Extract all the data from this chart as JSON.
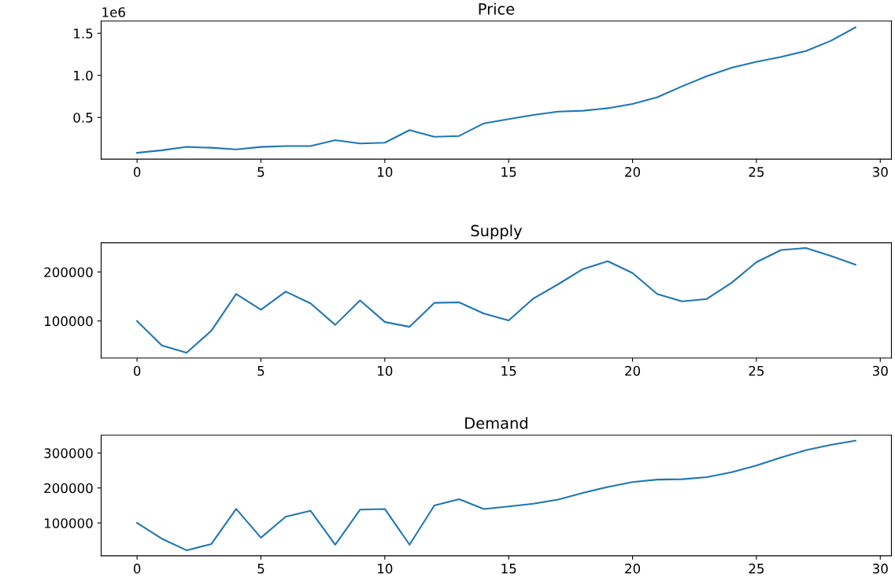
{
  "chart_data": [
    {
      "type": "line",
      "title": "Price",
      "x": [
        0,
        1,
        2,
        3,
        4,
        5,
        6,
        7,
        8,
        9,
        10,
        11,
        12,
        13,
        14,
        15,
        16,
        17,
        18,
        19,
        20,
        21,
        22,
        23,
        24,
        25,
        26,
        27,
        28,
        29
      ],
      "series": [
        {
          "color": "#1f77b4",
          "values": [
            0.08,
            0.11,
            0.15,
            0.14,
            0.12,
            0.15,
            0.16,
            0.16,
            0.23,
            0.19,
            0.2,
            0.35,
            0.27,
            0.28,
            0.43,
            0.48,
            0.53,
            0.57,
            0.58,
            0.61,
            0.66,
            0.74,
            0.87,
            0.99,
            1.09,
            1.16,
            1.22,
            1.29,
            1.41,
            1.57
          ]
        }
      ],
      "xlim": [
        -1.45,
        30.45
      ],
      "xticks": [
        0,
        5,
        10,
        15,
        20,
        25,
        30
      ],
      "ylim": [
        0.005,
        1.645
      ],
      "yticks": [
        {
          "value": 0.5,
          "label": "0.5"
        },
        {
          "value": 1.0,
          "label": "1.0"
        },
        {
          "value": 1.5,
          "label": "1.5"
        }
      ],
      "annotations": [
        "1e6"
      ],
      "grid": false,
      "legend": false
    },
    {
      "type": "line",
      "title": "Supply",
      "x": [
        0,
        1,
        2,
        3,
        4,
        5,
        6,
        7,
        8,
        9,
        10,
        11,
        12,
        13,
        14,
        15,
        16,
        17,
        18,
        19,
        20,
        21,
        22,
        23,
        24,
        25,
        26,
        27,
        28,
        29
      ],
      "series": [
        {
          "color": "#1f77b4",
          "values": [
            100000,
            50000,
            35000,
            80000,
            155000,
            123000,
            160000,
            136000,
            92000,
            142000,
            98000,
            88000,
            137000,
            138000,
            115000,
            101000,
            146000,
            175000,
            206000,
            222000,
            198000,
            155000,
            140000,
            145000,
            178000,
            220000,
            245000,
            249000,
            233000,
            215000
          ]
        }
      ],
      "xlim": [
        -1.45,
        30.45
      ],
      "xticks": [
        0,
        5,
        10,
        15,
        20,
        25,
        30
      ],
      "ylim": [
        24300,
        259700
      ],
      "yticks": [
        100000,
        200000
      ],
      "grid": false,
      "legend": false
    },
    {
      "type": "line",
      "title": "Demand",
      "x": [
        0,
        1,
        2,
        3,
        4,
        5,
        6,
        7,
        8,
        9,
        10,
        11,
        12,
        13,
        14,
        15,
        16,
        17,
        18,
        19,
        20,
        21,
        22,
        23,
        24,
        25,
        26,
        27,
        28,
        29
      ],
      "series": [
        {
          "color": "#1f77b4",
          "values": [
            100000,
            55000,
            22000,
            40000,
            140000,
            58000,
            118000,
            135000,
            38000,
            138000,
            140000,
            38000,
            150000,
            168000,
            140000,
            147000,
            155000,
            167000,
            186000,
            203000,
            217000,
            224000,
            225000,
            231000,
            245000,
            264000,
            287000,
            308000,
            323000,
            335000
          ]
        }
      ],
      "xlim": [
        -1.45,
        30.45
      ],
      "xticks": [
        0,
        5,
        10,
        15,
        20,
        25,
        30
      ],
      "ylim": [
        6350,
        350650
      ],
      "yticks": [
        100000,
        200000,
        300000
      ],
      "grid": false,
      "legend": false
    }
  ]
}
